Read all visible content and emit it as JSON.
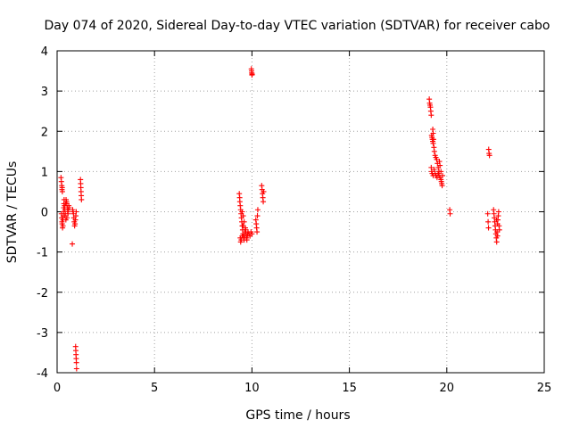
{
  "chart_data": {
    "type": "scatter",
    "title": "Day 074 of 2020, Sidereal Day-to-day VTEC variation (SDTVAR) for receiver cabo",
    "xlabel": "GPS time / hours",
    "ylabel": "SDTVAR / TECUs",
    "xlim": [
      0,
      25
    ],
    "ylim": [
      -4,
      4
    ],
    "xticks": [
      "0",
      "5",
      "10",
      "15",
      "20",
      "25"
    ],
    "yticks": [
      "-4",
      "-3",
      "-2",
      "-1",
      "0",
      "1",
      "2",
      "3",
      "4"
    ],
    "grid": true,
    "marker": "+",
    "color": "#ff0000",
    "series": [
      {
        "name": "cabo",
        "points": [
          [
            0.2,
            0.85
          ],
          [
            0.22,
            0.75
          ],
          [
            0.24,
            0.65
          ],
          [
            0.25,
            0.55
          ],
          [
            0.26,
            0.6
          ],
          [
            0.27,
            0.5
          ],
          [
            0.22,
            -0.05
          ],
          [
            0.24,
            -0.15
          ],
          [
            0.25,
            -0.25
          ],
          [
            0.26,
            -0.3
          ],
          [
            0.28,
            -0.4
          ],
          [
            0.3,
            -0.35
          ],
          [
            0.3,
            -0.2
          ],
          [
            0.32,
            -0.1
          ],
          [
            0.33,
            0.0
          ],
          [
            0.34,
            0.1
          ],
          [
            0.35,
            0.2
          ],
          [
            0.36,
            0.3
          ],
          [
            0.38,
            0.15
          ],
          [
            0.4,
            0.05
          ],
          [
            0.42,
            -0.05
          ],
          [
            0.44,
            0.2
          ],
          [
            0.46,
            0.3
          ],
          [
            0.48,
            0.25
          ],
          [
            0.5,
            0.2
          ],
          [
            0.52,
            0.1
          ],
          [
            0.54,
            0.0
          ],
          [
            0.56,
            -0.05
          ],
          [
            0.58,
            0.05
          ],
          [
            0.6,
            0.15
          ],
          [
            0.62,
            0.1
          ],
          [
            0.4,
            -0.1
          ],
          [
            0.45,
            -0.2
          ],
          [
            0.5,
            -0.15
          ],
          [
            0.8,
            0.05
          ],
          [
            0.82,
            0.0
          ],
          [
            0.84,
            -0.05
          ],
          [
            0.86,
            -0.15
          ],
          [
            0.88,
            -0.25
          ],
          [
            0.9,
            -0.35
          ],
          [
            0.92,
            -0.3
          ],
          [
            0.94,
            -0.2
          ],
          [
            0.96,
            -0.1
          ],
          [
            0.98,
            0.0
          ],
          [
            0.78,
            -0.8
          ],
          [
            1.2,
            0.8
          ],
          [
            1.21,
            0.7
          ],
          [
            1.22,
            0.6
          ],
          [
            1.23,
            0.5
          ],
          [
            1.24,
            0.4
          ],
          [
            1.25,
            0.3
          ],
          [
            0.95,
            -3.35
          ],
          [
            0.96,
            -3.45
          ],
          [
            0.97,
            -3.55
          ],
          [
            0.98,
            -3.65
          ],
          [
            0.99,
            -3.75
          ],
          [
            1.0,
            -3.9
          ],
          [
            9.35,
            0.45
          ],
          [
            9.37,
            0.35
          ],
          [
            9.38,
            0.25
          ],
          [
            9.4,
            0.15
          ],
          [
            9.42,
            0.05
          ],
          [
            9.44,
            -0.05
          ],
          [
            9.46,
            -0.15
          ],
          [
            9.48,
            -0.25
          ],
          [
            9.5,
            -0.35
          ],
          [
            9.52,
            -0.45
          ],
          [
            9.54,
            -0.55
          ],
          [
            9.56,
            -0.6
          ],
          [
            9.58,
            -0.65
          ],
          [
            9.6,
            -0.7
          ],
          [
            9.62,
            -0.6
          ],
          [
            9.64,
            -0.5
          ],
          [
            9.66,
            -0.4
          ],
          [
            9.68,
            -0.45
          ],
          [
            9.7,
            -0.55
          ],
          [
            9.72,
            -0.65
          ],
          [
            9.74,
            -0.7
          ],
          [
            9.76,
            -0.6
          ],
          [
            9.78,
            -0.55
          ],
          [
            9.8,
            -0.5
          ],
          [
            9.4,
            -0.65
          ],
          [
            9.42,
            -0.75
          ],
          [
            9.45,
            -0.7
          ],
          [
            9.5,
            -0.6
          ],
          [
            9.55,
            -0.35
          ],
          [
            9.6,
            -0.25
          ],
          [
            9.85,
            -0.55
          ],
          [
            9.9,
            -0.6
          ],
          [
            9.95,
            -0.5
          ],
          [
            10.0,
            -0.55
          ],
          [
            9.5,
            0.0
          ],
          [
            9.55,
            -0.1
          ],
          [
            10.2,
            -0.2
          ],
          [
            10.22,
            -0.3
          ],
          [
            10.24,
            -0.4
          ],
          [
            10.26,
            -0.5
          ],
          [
            10.28,
            -0.1
          ],
          [
            10.3,
            0.05
          ],
          [
            10.5,
            0.65
          ],
          [
            10.52,
            0.55
          ],
          [
            10.54,
            0.45
          ],
          [
            10.56,
            0.35
          ],
          [
            10.58,
            0.25
          ],
          [
            10.6,
            0.5
          ],
          [
            9.97,
            3.55
          ],
          [
            9.98,
            3.5
          ],
          [
            9.99,
            3.45
          ],
          [
            10.0,
            3.4
          ],
          [
            10.01,
            3.42
          ],
          [
            19.1,
            2.8
          ],
          [
            19.12,
            2.7
          ],
          [
            19.14,
            2.65
          ],
          [
            19.16,
            2.6
          ],
          [
            19.18,
            2.5
          ],
          [
            19.2,
            2.4
          ],
          [
            19.22,
            1.9
          ],
          [
            19.24,
            1.85
          ],
          [
            19.26,
            1.8
          ],
          [
            19.28,
            1.75
          ],
          [
            19.3,
            1.7
          ],
          [
            19.32,
            1.8
          ],
          [
            19.34,
            1.6
          ],
          [
            19.36,
            1.5
          ],
          [
            19.4,
            1.4
          ],
          [
            19.44,
            1.35
          ],
          [
            19.48,
            1.3
          ],
          [
            19.52,
            1.2
          ],
          [
            19.56,
            1.1
          ],
          [
            19.6,
            1.0
          ],
          [
            19.2,
            1.1
          ],
          [
            19.22,
            1.0
          ],
          [
            19.25,
            0.95
          ],
          [
            19.3,
            0.9
          ],
          [
            19.35,
            1.05
          ],
          [
            19.4,
            0.95
          ],
          [
            19.45,
            0.9
          ],
          [
            19.5,
            0.85
          ],
          [
            19.55,
            0.95
          ],
          [
            19.6,
            0.9
          ],
          [
            19.65,
            0.85
          ],
          [
            19.7,
            0.8
          ],
          [
            19.72,
            0.75
          ],
          [
            19.74,
            0.7
          ],
          [
            19.76,
            0.65
          ],
          [
            19.78,
            0.9
          ],
          [
            19.28,
            2.05
          ],
          [
            19.3,
            1.95
          ],
          [
            19.62,
            1.25
          ],
          [
            19.65,
            1.15
          ],
          [
            19.7,
            1.0
          ],
          [
            20.15,
            0.05
          ],
          [
            20.17,
            -0.05
          ],
          [
            22.15,
            1.55
          ],
          [
            22.17,
            1.45
          ],
          [
            22.19,
            1.4
          ],
          [
            22.1,
            -0.05
          ],
          [
            22.12,
            -0.25
          ],
          [
            22.14,
            -0.4
          ],
          [
            22.4,
            0.05
          ],
          [
            22.42,
            -0.05
          ],
          [
            22.44,
            -0.15
          ],
          [
            22.46,
            -0.25
          ],
          [
            22.48,
            -0.35
          ],
          [
            22.5,
            -0.45
          ],
          [
            22.52,
            -0.55
          ],
          [
            22.54,
            -0.65
          ],
          [
            22.56,
            -0.75
          ],
          [
            22.58,
            -0.5
          ],
          [
            22.6,
            -0.3
          ],
          [
            22.62,
            -0.2
          ],
          [
            22.64,
            -0.1
          ],
          [
            22.66,
            0.0
          ],
          [
            22.68,
            -0.35
          ],
          [
            22.7,
            -0.45
          ],
          [
            22.55,
            -0.2
          ],
          [
            22.6,
            -0.6
          ]
        ]
      }
    ]
  }
}
